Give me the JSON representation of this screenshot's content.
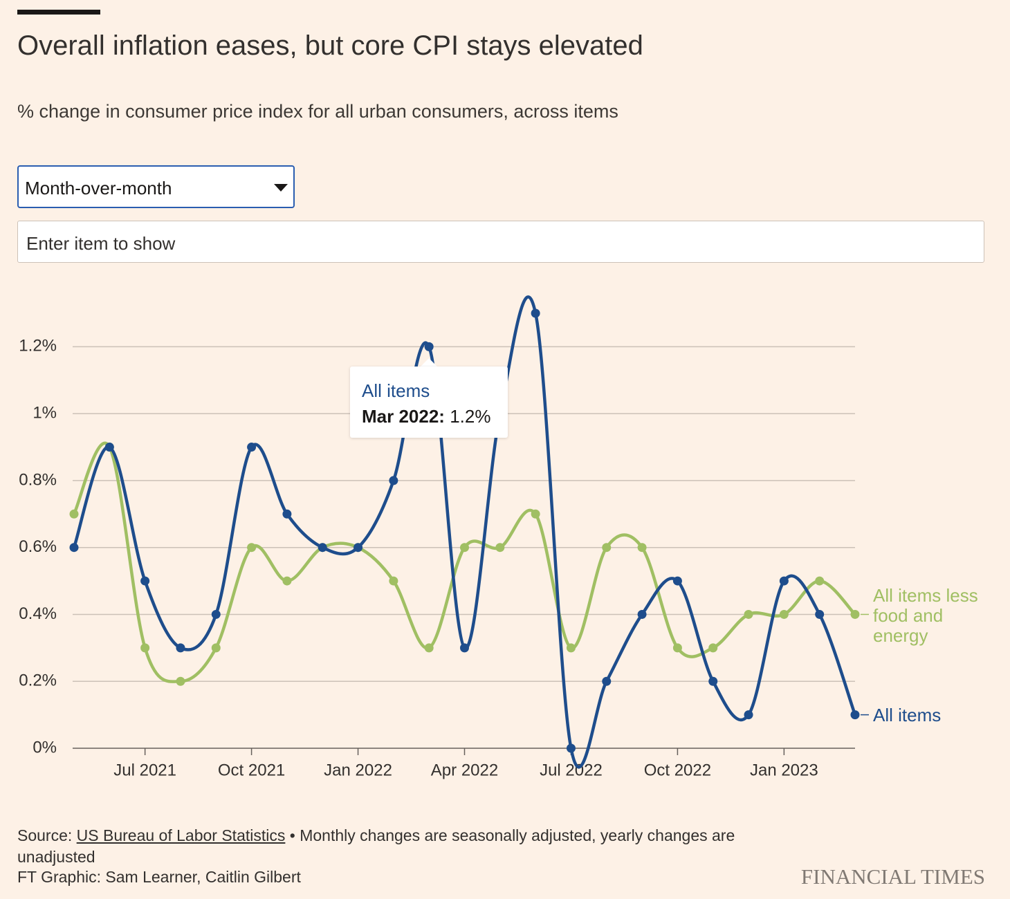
{
  "header": {
    "title": "Overall inflation eases, but core CPI stays elevated",
    "subtitle": "% change in consumer price index for all urban consumers, across items"
  },
  "controls": {
    "dropdown": "Month-over-month",
    "search_placeholder": "Enter item to show"
  },
  "chart_data": {
    "type": "line",
    "categories": [
      "May 2021",
      "Jun 2021",
      "Jul 2021",
      "Aug 2021",
      "Sep 2021",
      "Oct 2021",
      "Nov 2021",
      "Dec 2021",
      "Jan 2022",
      "Feb 2022",
      "Mar 2022",
      "Apr 2022",
      "May 2022",
      "Jun 2022",
      "Jul 2022",
      "Aug 2022",
      "Sep 2022",
      "Oct 2022",
      "Nov 2022",
      "Dec 2022",
      "Jan 2023",
      "Feb 2023",
      "Mar 2023"
    ],
    "xticks": [
      "Jul 2021",
      "Oct 2021",
      "Jan 2022",
      "Apr 2022",
      "Jul 2022",
      "Oct 2022",
      "Jan 2023"
    ],
    "series": [
      {
        "name": "All items",
        "color": "#1e4d8c",
        "values": [
          0.6,
          0.9,
          0.5,
          0.3,
          0.4,
          0.9,
          0.7,
          0.6,
          0.6,
          0.8,
          1.2,
          0.3,
          1.0,
          1.3,
          0.0,
          0.2,
          0.4,
          0.5,
          0.2,
          0.1,
          0.5,
          0.4,
          0.1
        ]
      },
      {
        "name": "All items less food and energy",
        "color": "#a0bf63",
        "values": [
          0.7,
          0.9,
          0.3,
          0.2,
          0.3,
          0.6,
          0.5,
          0.6,
          0.6,
          0.5,
          0.3,
          0.6,
          0.6,
          0.7,
          0.3,
          0.6,
          0.6,
          0.3,
          0.3,
          0.4,
          0.4,
          0.5,
          0.4
        ]
      }
    ],
    "ylim": [
      0,
      1.3
    ],
    "yticks": [
      {
        "value": 0,
        "label": "0%"
      },
      {
        "value": 0.2,
        "label": "0.2%"
      },
      {
        "value": 0.4,
        "label": "0.4%"
      },
      {
        "value": 0.6,
        "label": "0.6%"
      },
      {
        "value": 0.8,
        "label": "0.8%"
      },
      {
        "value": 1,
        "label": "1%"
      },
      {
        "value": 1.2,
        "label": "1.2%"
      }
    ],
    "grid": true,
    "tooltip": {
      "date_label": "Mar 2022:",
      "value_label": "1.2%"
    }
  },
  "footer": {
    "source_label": "Source:",
    "source_link": "US Bureau of Labor Statistics",
    "note": "• Monthly changes are seasonally adjusted, yearly changes are unadjusted",
    "credit": "FT Graphic: Sam Learner, Caitlin Gilbert",
    "brand": "FINANCIAL TIMES"
  }
}
